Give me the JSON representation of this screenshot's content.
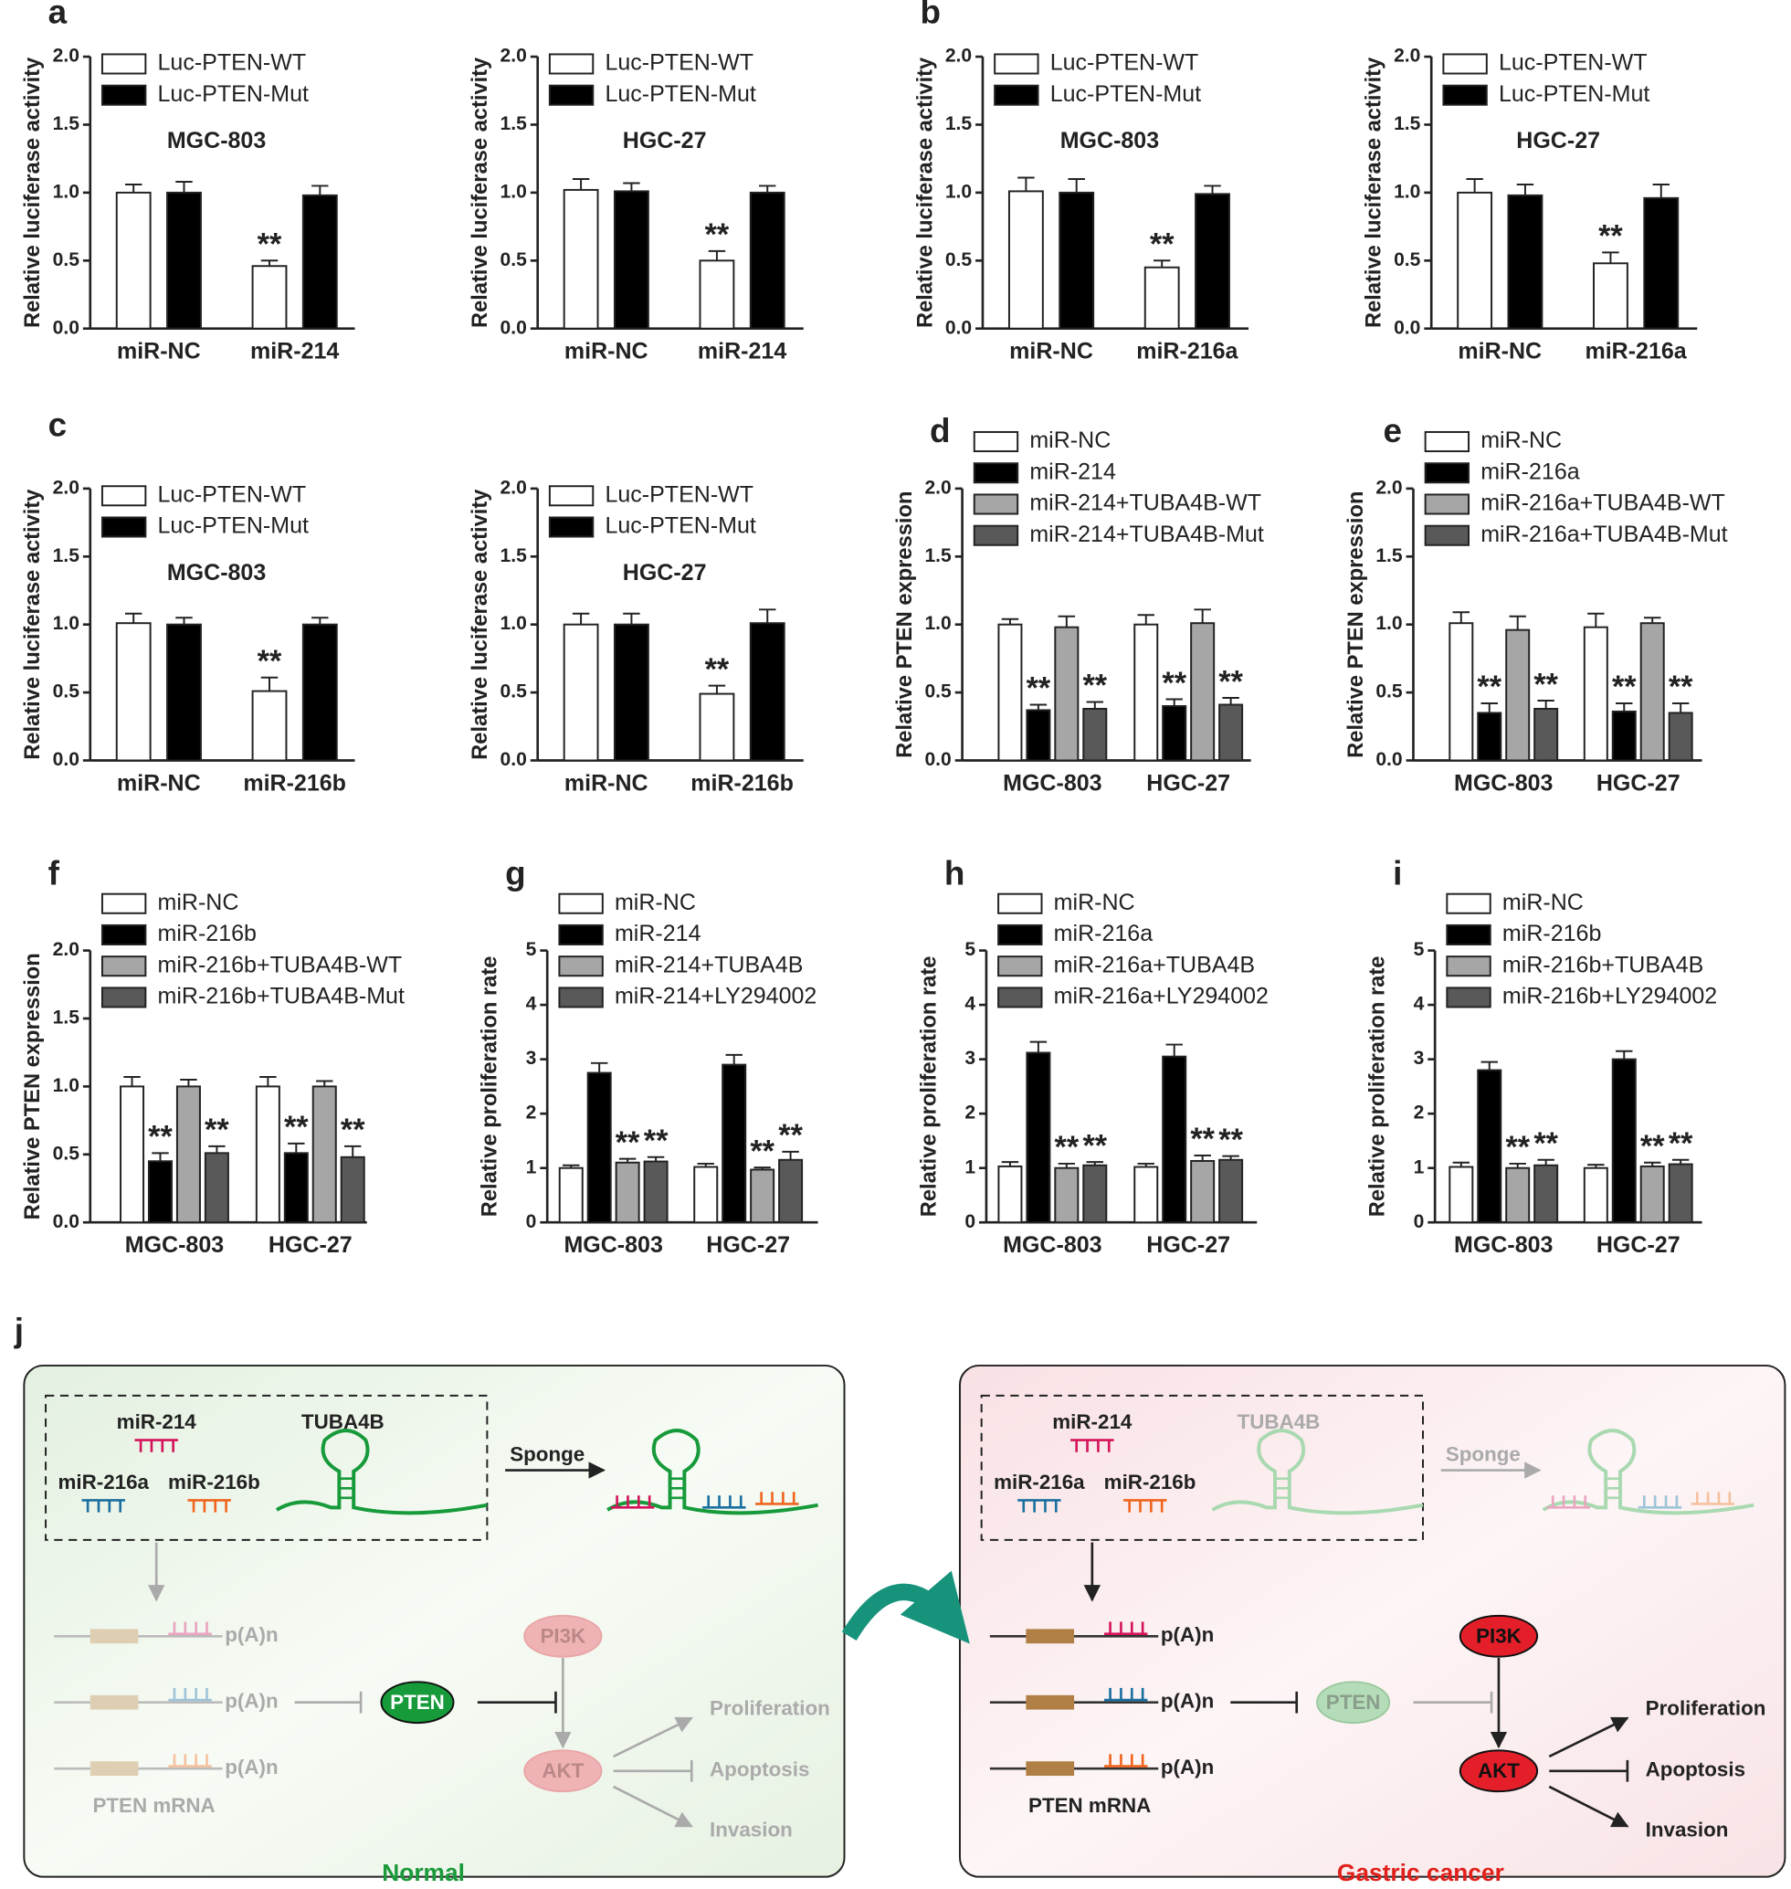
{
  "chart_data": [
    {
      "type": "bar",
      "panel": "a",
      "subtitle": "MGC-803",
      "ylabel": "Relative luciferase activity",
      "categories": [
        "miR-NC",
        "miR-214"
      ],
      "ylim": [
        0,
        2
      ],
      "yticks": [
        {
          "value": 0,
          "label": "0.0"
        },
        {
          "value": 0.5,
          "label": "0.5"
        },
        {
          "value": 1,
          "label": "1.0"
        },
        {
          "value": 1.5,
          "label": "1.5"
        },
        {
          "value": 2,
          "label": "2.0"
        }
      ],
      "series": [
        {
          "name": "Luc-PTEN-WT",
          "color": "#ffffff",
          "values": [
            1.0,
            0.46
          ],
          "errors": [
            0.06,
            0.04
          ]
        },
        {
          "name": "Luc-PTEN-Mut",
          "color": "#000000",
          "values": [
            1.0,
            0.98
          ],
          "errors": [
            0.08,
            0.07
          ]
        }
      ],
      "annotations": [
        {
          "text": "**",
          "series": "Luc-PTEN-WT",
          "category": "miR-214"
        }
      ]
    },
    {
      "type": "bar",
      "subtitle": "HGC-27",
      "ylabel": "Relative luciferase activity",
      "categories": [
        "miR-NC",
        "miR-214"
      ],
      "ylim": [
        0,
        2
      ],
      "yticks": [
        {
          "value": 0,
          "label": "0.0"
        },
        {
          "value": 0.5,
          "label": "0.5"
        },
        {
          "value": 1,
          "label": "1.0"
        },
        {
          "value": 1.5,
          "label": "1.5"
        },
        {
          "value": 2,
          "label": "2.0"
        }
      ],
      "series": [
        {
          "name": "Luc-PTEN-WT",
          "color": "#ffffff",
          "values": [
            1.02,
            0.5
          ],
          "errors": [
            0.08,
            0.07
          ]
        },
        {
          "name": "Luc-PTEN-Mut",
          "color": "#000000",
          "values": [
            1.01,
            1.0
          ],
          "errors": [
            0.06,
            0.05
          ]
        }
      ],
      "annotations": [
        {
          "text": "**",
          "series": "Luc-PTEN-WT",
          "category": "miR-214"
        }
      ]
    },
    {
      "type": "bar",
      "panel": "b",
      "subtitle": "MGC-803",
      "ylabel": "Relative luciferase activity",
      "categories": [
        "miR-NC",
        "miR-216a"
      ],
      "ylim": [
        0,
        2
      ],
      "yticks": [
        {
          "value": 0,
          "label": "0.0"
        },
        {
          "value": 0.5,
          "label": "0.5"
        },
        {
          "value": 1,
          "label": "1.0"
        },
        {
          "value": 1.5,
          "label": "1.5"
        },
        {
          "value": 2,
          "label": "2.0"
        }
      ],
      "series": [
        {
          "name": "Luc-PTEN-WT",
          "color": "#ffffff",
          "values": [
            1.01,
            0.45
          ],
          "errors": [
            0.1,
            0.05
          ]
        },
        {
          "name": "Luc-PTEN-Mut",
          "color": "#000000",
          "values": [
            1.0,
            0.99
          ],
          "errors": [
            0.1,
            0.06
          ]
        }
      ],
      "annotations": [
        {
          "text": "**",
          "series": "Luc-PTEN-WT",
          "category": "miR-216a"
        }
      ]
    },
    {
      "type": "bar",
      "subtitle": "HGC-27",
      "ylabel": "Relative luciferase activity",
      "categories": [
        "miR-NC",
        "miR-216a"
      ],
      "ylim": [
        0,
        2
      ],
      "yticks": [
        {
          "value": 0,
          "label": "0.0"
        },
        {
          "value": 0.5,
          "label": "0.5"
        },
        {
          "value": 1,
          "label": "1.0"
        },
        {
          "value": 1.5,
          "label": "1.5"
        },
        {
          "value": 2,
          "label": "2.0"
        }
      ],
      "series": [
        {
          "name": "Luc-PTEN-WT",
          "color": "#ffffff",
          "values": [
            1.0,
            0.48
          ],
          "errors": [
            0.1,
            0.08
          ]
        },
        {
          "name": "Luc-PTEN-Mut",
          "color": "#000000",
          "values": [
            0.98,
            0.96
          ],
          "errors": [
            0.08,
            0.1
          ]
        }
      ],
      "annotations": [
        {
          "text": "**",
          "series": "Luc-PTEN-WT",
          "category": "miR-216a"
        }
      ]
    },
    {
      "type": "bar",
      "panel": "c",
      "subtitle": "MGC-803",
      "ylabel": "Relative luciferase activity",
      "categories": [
        "miR-NC",
        "miR-216b"
      ],
      "ylim": [
        0,
        2
      ],
      "yticks": [
        {
          "value": 0,
          "label": "0.0"
        },
        {
          "value": 0.5,
          "label": "0.5"
        },
        {
          "value": 1,
          "label": "1.0"
        },
        {
          "value": 1.5,
          "label": "1.5"
        },
        {
          "value": 2,
          "label": "2.0"
        }
      ],
      "series": [
        {
          "name": "Luc-PTEN-WT",
          "color": "#ffffff",
          "values": [
            1.01,
            0.51
          ],
          "errors": [
            0.07,
            0.1
          ]
        },
        {
          "name": "Luc-PTEN-Mut",
          "color": "#000000",
          "values": [
            1.0,
            1.0
          ],
          "errors": [
            0.05,
            0.05
          ]
        }
      ],
      "annotations": [
        {
          "text": "**",
          "series": "Luc-PTEN-WT",
          "category": "miR-216b"
        }
      ]
    },
    {
      "type": "bar",
      "subtitle": "HGC-27",
      "ylabel": "Relative luciferase activity",
      "categories": [
        "miR-NC",
        "miR-216b"
      ],
      "ylim": [
        0,
        2
      ],
      "yticks": [
        {
          "value": 0,
          "label": "0.0"
        },
        {
          "value": 0.5,
          "label": "0.5"
        },
        {
          "value": 1,
          "label": "1.0"
        },
        {
          "value": 1.5,
          "label": "1.5"
        },
        {
          "value": 2,
          "label": "2.0"
        }
      ],
      "series": [
        {
          "name": "Luc-PTEN-WT",
          "color": "#ffffff",
          "values": [
            1.0,
            0.49
          ],
          "errors": [
            0.08,
            0.06
          ]
        },
        {
          "name": "Luc-PTEN-Mut",
          "color": "#000000",
          "values": [
            1.0,
            1.01
          ],
          "errors": [
            0.08,
            0.1
          ]
        }
      ],
      "annotations": [
        {
          "text": "**",
          "series": "Luc-PTEN-WT",
          "category": "miR-216b"
        }
      ]
    },
    {
      "type": "bar",
      "panel": "d",
      "ylabel": "Relative PTEN expression",
      "categories": [
        "MGC-803",
        "HGC-27"
      ],
      "ylim": [
        0,
        2
      ],
      "yticks": [
        {
          "value": 0,
          "label": "0.0"
        },
        {
          "value": 0.5,
          "label": "0.5"
        },
        {
          "value": 1,
          "label": "1.0"
        },
        {
          "value": 1.5,
          "label": "1.5"
        },
        {
          "value": 2,
          "label": "2.0"
        }
      ],
      "series": [
        {
          "name": "miR-NC",
          "color": "#ffffff",
          "values": [
            1.0,
            1.0
          ],
          "errors": [
            0.04,
            0.07
          ]
        },
        {
          "name": "miR-214",
          "color": "#000000",
          "values": [
            0.37,
            0.4
          ],
          "errors": [
            0.04,
            0.05
          ]
        },
        {
          "name": "miR-214+TUBA4B-WT",
          "color": "#a6a6a6",
          "values": [
            0.98,
            1.01
          ],
          "errors": [
            0.08,
            0.1
          ]
        },
        {
          "name": "miR-214+TUBA4B-Mut",
          "color": "#595959",
          "values": [
            0.38,
            0.41
          ],
          "errors": [
            0.05,
            0.05
          ]
        }
      ],
      "annotations": [
        {
          "text": "**",
          "series": "miR-214",
          "category": "MGC-803"
        },
        {
          "text": "**",
          "series": "miR-214+TUBA4B-Mut",
          "category": "MGC-803"
        },
        {
          "text": "**",
          "series": "miR-214",
          "category": "HGC-27"
        },
        {
          "text": "**",
          "series": "miR-214+TUBA4B-Mut",
          "category": "HGC-27"
        }
      ]
    },
    {
      "type": "bar",
      "panel": "e",
      "ylabel": "Relative PTEN expression",
      "categories": [
        "MGC-803",
        "HGC-27"
      ],
      "ylim": [
        0,
        2
      ],
      "yticks": [
        {
          "value": 0,
          "label": "0.0"
        },
        {
          "value": 0.5,
          "label": "0.5"
        },
        {
          "value": 1,
          "label": "1.0"
        },
        {
          "value": 1.5,
          "label": "1.5"
        },
        {
          "value": 2,
          "label": "2.0"
        }
      ],
      "series": [
        {
          "name": "miR-NC",
          "color": "#ffffff",
          "values": [
            1.01,
            0.98
          ],
          "errors": [
            0.08,
            0.1
          ]
        },
        {
          "name": "miR-216a",
          "color": "#000000",
          "values": [
            0.35,
            0.36
          ],
          "errors": [
            0.07,
            0.06
          ]
        },
        {
          "name": "miR-216a+TUBA4B-WT",
          "color": "#a6a6a6",
          "values": [
            0.96,
            1.01
          ],
          "errors": [
            0.1,
            0.04
          ]
        },
        {
          "name": "miR-216a+TUBA4B-Mut",
          "color": "#595959",
          "values": [
            0.38,
            0.35
          ],
          "errors": [
            0.06,
            0.07
          ]
        }
      ],
      "annotations": [
        {
          "text": "**",
          "series": "miR-216a",
          "category": "MGC-803"
        },
        {
          "text": "**",
          "series": "miR-216a+TUBA4B-Mut",
          "category": "MGC-803"
        },
        {
          "text": "**",
          "series": "miR-216a",
          "category": "HGC-27"
        },
        {
          "text": "**",
          "series": "miR-216a+TUBA4B-Mut",
          "category": "HGC-27"
        }
      ]
    },
    {
      "type": "bar",
      "panel": "f",
      "ylabel": "Relative PTEN expression",
      "categories": [
        "MGC-803",
        "HGC-27"
      ],
      "ylim": [
        0,
        2
      ],
      "yticks": [
        {
          "value": 0,
          "label": "0.0"
        },
        {
          "value": 0.5,
          "label": "0.5"
        },
        {
          "value": 1,
          "label": "1.0"
        },
        {
          "value": 1.5,
          "label": "1.5"
        },
        {
          "value": 2,
          "label": "2.0"
        }
      ],
      "series": [
        {
          "name": "miR-NC",
          "color": "#ffffff",
          "values": [
            1.0,
            1.0
          ],
          "errors": [
            0.07,
            0.07
          ]
        },
        {
          "name": "miR-216b",
          "color": "#000000",
          "values": [
            0.45,
            0.51
          ],
          "errors": [
            0.06,
            0.07
          ]
        },
        {
          "name": "miR-216b+TUBA4B-WT",
          "color": "#a6a6a6",
          "values": [
            1.0,
            1.0
          ],
          "errors": [
            0.05,
            0.04
          ]
        },
        {
          "name": "miR-216b+TUBA4B-Mut",
          "color": "#595959",
          "values": [
            0.51,
            0.48
          ],
          "errors": [
            0.05,
            0.08
          ]
        }
      ],
      "annotations": [
        {
          "text": "**",
          "series": "miR-216b",
          "category": "MGC-803"
        },
        {
          "text": "**",
          "series": "miR-216b+TUBA4B-Mut",
          "category": "MGC-803"
        },
        {
          "text": "**",
          "series": "miR-216b",
          "category": "HGC-27"
        },
        {
          "text": "**",
          "series": "miR-216b+TUBA4B-Mut",
          "category": "HGC-27"
        }
      ]
    },
    {
      "type": "bar",
      "panel": "g",
      "ylabel": "Relative proliferation rate",
      "categories": [
        "MGC-803",
        "HGC-27"
      ],
      "ylim": [
        0,
        5
      ],
      "yticks": [
        0,
        1,
        2,
        3,
        4,
        5
      ],
      "series": [
        {
          "name": "miR-NC",
          "color": "#ffffff",
          "values": [
            1.0,
            1.02
          ],
          "errors": [
            0.05,
            0.06
          ]
        },
        {
          "name": "miR-214",
          "color": "#000000",
          "values": [
            2.75,
            2.9
          ],
          "errors": [
            0.18,
            0.18
          ]
        },
        {
          "name": "miR-214+TUBA4B",
          "color": "#a6a6a6",
          "values": [
            1.1,
            0.97
          ],
          "errors": [
            0.07,
            0.04
          ]
        },
        {
          "name": "miR-214+LY294002",
          "color": "#595959",
          "values": [
            1.12,
            1.15
          ],
          "errors": [
            0.08,
            0.15
          ]
        }
      ],
      "annotations": [
        {
          "text": "**",
          "series": "miR-214+TUBA4B",
          "category": "MGC-803"
        },
        {
          "text": "**",
          "series": "miR-214+LY294002",
          "category": "MGC-803"
        },
        {
          "text": "**",
          "series": "miR-214+TUBA4B",
          "category": "HGC-27"
        },
        {
          "text": "**",
          "series": "miR-214+LY294002",
          "category": "HGC-27"
        }
      ]
    },
    {
      "type": "bar",
      "panel": "h",
      "ylabel": "Relative proliferation rate",
      "categories": [
        "MGC-803",
        "HGC-27"
      ],
      "ylim": [
        0,
        5
      ],
      "yticks": [
        0,
        1,
        2,
        3,
        4,
        5
      ],
      "series": [
        {
          "name": "miR-NC",
          "color": "#ffffff",
          "values": [
            1.03,
            1.02
          ],
          "errors": [
            0.08,
            0.06
          ]
        },
        {
          "name": "miR-216a",
          "color": "#000000",
          "values": [
            3.12,
            3.05
          ],
          "errors": [
            0.2,
            0.22
          ]
        },
        {
          "name": "miR-216a+TUBA4B",
          "color": "#a6a6a6",
          "values": [
            1.0,
            1.13
          ],
          "errors": [
            0.08,
            0.1
          ]
        },
        {
          "name": "miR-216a+LY294002",
          "color": "#595959",
          "values": [
            1.05,
            1.15
          ],
          "errors": [
            0.06,
            0.07
          ]
        }
      ],
      "annotations": [
        {
          "text": "**",
          "series": "miR-216a+TUBA4B",
          "category": "MGC-803"
        },
        {
          "text": "**",
          "series": "miR-216a+LY294002",
          "category": "MGC-803"
        },
        {
          "text": "**",
          "series": "miR-216a+TUBA4B",
          "category": "HGC-27"
        },
        {
          "text": "**",
          "series": "miR-216a+LY294002",
          "category": "HGC-27"
        }
      ]
    },
    {
      "type": "bar",
      "panel": "i",
      "ylabel": "Relative proliferation rate",
      "categories": [
        "MGC-803",
        "HGC-27"
      ],
      "ylim": [
        0,
        5
      ],
      "yticks": [
        0,
        1,
        2,
        3,
        4,
        5
      ],
      "series": [
        {
          "name": "miR-NC",
          "color": "#ffffff",
          "values": [
            1.02,
            1.0
          ],
          "errors": [
            0.08,
            0.06
          ]
        },
        {
          "name": "miR-216b",
          "color": "#000000",
          "values": [
            2.8,
            3.0
          ],
          "errors": [
            0.15,
            0.15
          ]
        },
        {
          "name": "miR-216b+TUBA4B",
          "color": "#a6a6a6",
          "values": [
            1.0,
            1.03
          ],
          "errors": [
            0.08,
            0.07
          ]
        },
        {
          "name": "miR-216b+LY294002",
          "color": "#595959",
          "values": [
            1.05,
            1.07
          ],
          "errors": [
            0.1,
            0.08
          ]
        }
      ],
      "annotations": [
        {
          "text": "**",
          "series": "miR-216b+TUBA4B",
          "category": "MGC-803"
        },
        {
          "text": "**",
          "series": "miR-216b+LY294002",
          "category": "MGC-803"
        },
        {
          "text": "**",
          "series": "miR-216b+TUBA4B",
          "category": "HGC-27"
        },
        {
          "text": "**",
          "series": "miR-216b+LY294002",
          "category": "HGC-27"
        }
      ]
    }
  ],
  "diagram": {
    "label": "j",
    "panels": [
      {
        "title": "Normal",
        "mir214": "miR-214",
        "tuba4b": "TUBA4B",
        "mir216a": "miR-216a",
        "mir216b": "miR-216b",
        "sponge": "Sponge",
        "polya": [
          "p(A)n",
          "p(A)n",
          "p(A)n"
        ],
        "pten": "PTEN",
        "pten_mrna": "PTEN mRNA",
        "pi3k": "PI3K",
        "akt": "AKT",
        "outcomes": [
          "Proliferation",
          "Apoptosis",
          "Invasion"
        ]
      },
      {
        "title": "Gastric cancer",
        "mir214": "miR-214",
        "tuba4b": "TUBA4B",
        "mir216a": "miR-216a",
        "mir216b": "miR-216b",
        "sponge": "Sponge",
        "polya": [
          "p(A)n",
          "p(A)n",
          "p(A)n"
        ],
        "pten": "PTEN",
        "pten_mrna": "PTEN mRNA",
        "pi3k": "PI3K",
        "akt": "AKT",
        "outcomes": [
          "Proliferation",
          "Apoptosis",
          "Invasion"
        ]
      }
    ]
  }
}
